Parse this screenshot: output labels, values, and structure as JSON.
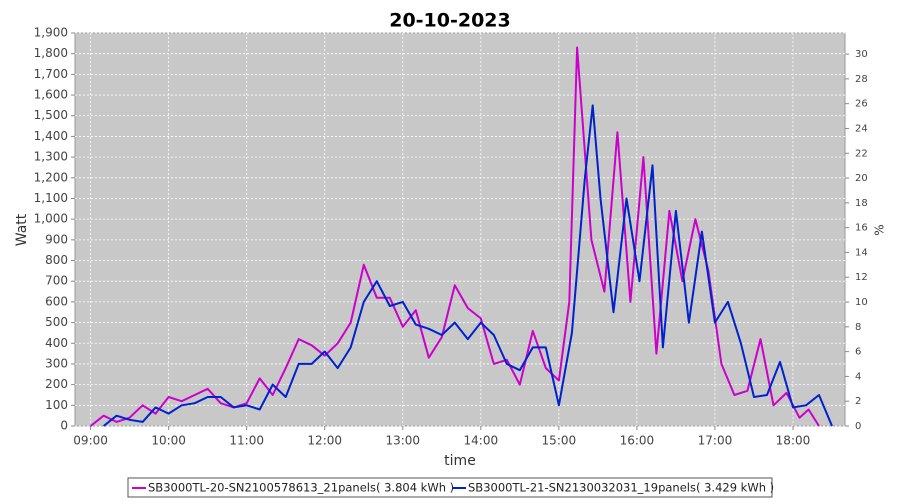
{
  "chart_data": {
    "type": "line",
    "title": "20-10-2023",
    "xlabel": "time",
    "ylabel": "Watt",
    "y2label": "%",
    "xlim": [
      "08:48",
      "18:40"
    ],
    "xticks": [
      "09:00",
      "10:00",
      "11:00",
      "12:00",
      "13:00",
      "14:00",
      "15:00",
      "16:00",
      "17:00",
      "18:00"
    ],
    "ylim": [
      0,
      1900
    ],
    "yticks": [
      0,
      100,
      200,
      300,
      400,
      500,
      600,
      700,
      800,
      900,
      {
        "value": 1000,
        "label": "1,000"
      },
      {
        "value": 1100,
        "label": "1,100"
      },
      {
        "value": 1200,
        "label": "1,200"
      },
      {
        "value": 1300,
        "label": "1,300"
      },
      {
        "value": 1400,
        "label": "1,400"
      },
      {
        "value": 1500,
        "label": "1,500"
      },
      {
        "value": 1600,
        "label": "1,600"
      },
      {
        "value": 1700,
        "label": "1,700"
      },
      {
        "value": 1800,
        "label": "1,800"
      },
      {
        "value": 1900,
        "label": "1,900"
      }
    ],
    "y2lim": [
      0,
      31.7
    ],
    "y2ticks": [
      0,
      2,
      4,
      6,
      8,
      10,
      12,
      14,
      16,
      18,
      20,
      22,
      24,
      26,
      28,
      30
    ],
    "grid": true,
    "legend": "bottom",
    "series": [
      {
        "name": "SB3000TL-20-SN2100578613_21panels( 3.804 kWh )",
        "color": "#cc00cc",
        "x": [
          "09:00",
          "09:10",
          "09:20",
          "09:30",
          "09:40",
          "09:50",
          "10:00",
          "10:10",
          "10:20",
          "10:30",
          "10:40",
          "10:50",
          "11:00",
          "11:10",
          "11:20",
          "11:30",
          "11:40",
          "11:50",
          "12:00",
          "12:10",
          "12:20",
          "12:30",
          "12:40",
          "12:50",
          "13:00",
          "13:10",
          "13:20",
          "13:30",
          "13:40",
          "13:50",
          "14:00",
          "14:10",
          "14:20",
          "14:30",
          "14:40",
          "14:50",
          "15:00",
          "15:08",
          "15:14",
          "15:25",
          "15:35",
          "15:45",
          "15:55",
          "16:05",
          "16:15",
          "16:25",
          "16:35",
          "16:45",
          "16:55",
          "17:05",
          "17:15",
          "17:25",
          "17:35",
          "17:45",
          "17:55",
          "18:05",
          "18:12",
          "18:20"
        ],
        "values": [
          0,
          50,
          20,
          40,
          100,
          60,
          140,
          120,
          150,
          180,
          110,
          90,
          110,
          230,
          150,
          280,
          420,
          390,
          340,
          400,
          500,
          780,
          620,
          620,
          480,
          560,
          330,
          430,
          680,
          570,
          520,
          300,
          320,
          200,
          460,
          280,
          220,
          600,
          1830,
          900,
          650,
          1420,
          600,
          1300,
          350,
          1040,
          700,
          1000,
          750,
          300,
          150,
          170,
          420,
          100,
          160,
          40,
          80,
          0
        ]
      },
      {
        "name": "SB3000TL-21-SN2130032031_19panels( 3.429 kWh )",
        "color": "#0022cc",
        "x": [
          "09:10",
          "09:20",
          "09:30",
          "09:40",
          "09:50",
          "10:00",
          "10:10",
          "10:20",
          "10:30",
          "10:40",
          "10:50",
          "11:00",
          "11:10",
          "11:20",
          "11:30",
          "11:40",
          "11:50",
          "12:00",
          "12:10",
          "12:20",
          "12:30",
          "12:40",
          "12:50",
          "13:00",
          "13:10",
          "13:20",
          "13:30",
          "13:40",
          "13:50",
          "14:00",
          "14:10",
          "14:20",
          "14:30",
          "14:40",
          "14:50",
          "15:00",
          "15:10",
          "15:20",
          "15:26",
          "15:32",
          "15:42",
          "15:52",
          "16:02",
          "16:12",
          "16:20",
          "16:30",
          "16:40",
          "16:50",
          "17:00",
          "17:10",
          "17:20",
          "17:30",
          "17:40",
          "17:50",
          "18:00",
          "18:10",
          "18:20",
          "18:30"
        ],
        "values": [
          0,
          50,
          30,
          20,
          90,
          60,
          100,
          110,
          140,
          140,
          90,
          100,
          80,
          200,
          140,
          300,
          300,
          360,
          280,
          380,
          600,
          700,
          580,
          600,
          490,
          470,
          440,
          500,
          420,
          500,
          440,
          300,
          270,
          380,
          380,
          100,
          450,
          1200,
          1550,
          1100,
          550,
          1100,
          700,
          1260,
          380,
          1040,
          500,
          940,
          500,
          600,
          400,
          140,
          150,
          310,
          90,
          100,
          150,
          0
        ]
      }
    ]
  }
}
